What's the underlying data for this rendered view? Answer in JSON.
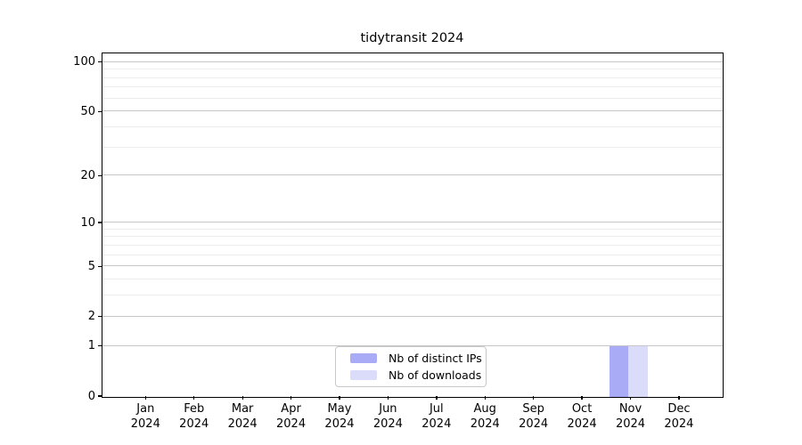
{
  "title": "tidytransit 2024",
  "chart_data": {
    "type": "bar",
    "title": "tidytransit 2024",
    "xlabel": "",
    "ylabel": "",
    "categories": [
      "Jan 2024",
      "Feb 2024",
      "Mar 2024",
      "Apr 2024",
      "May 2024",
      "Jun 2024",
      "Jul 2024",
      "Aug 2024",
      "Sep 2024",
      "Oct 2024",
      "Nov 2024",
      "Dec 2024"
    ],
    "series": [
      {
        "name": "Nb of distinct IPs",
        "color": "#aaabf6",
        "values": [
          0,
          0,
          0,
          0,
          0,
          0,
          0,
          0,
          0,
          0,
          1,
          0
        ]
      },
      {
        "name": "Nb of downloads",
        "color": "#dbdcf9",
        "values": [
          0,
          0,
          0,
          0,
          0,
          0,
          0,
          0,
          0,
          0,
          1,
          0
        ]
      }
    ],
    "y_axis": {
      "scale": "log1p",
      "tick_values": [
        100,
        50,
        20,
        10,
        5,
        2,
        1,
        0
      ],
      "tick_labels": [
        "100",
        "50",
        "20",
        "10",
        "5",
        "2",
        "1",
        "0"
      ],
      "minor_gridline_values": [
        3,
        4,
        6,
        7,
        8,
        9,
        30,
        40,
        60,
        70,
        80,
        90
      ],
      "range": [
        0,
        113
      ]
    },
    "legend": {
      "position": "bottom-center-inside",
      "entries": [
        "Nb of distinct IPs",
        "Nb of downloads"
      ]
    },
    "grid": {
      "axis": "y",
      "which": "major+minor"
    }
  },
  "colors": {
    "major_grid": "#c6c6c6",
    "minor_grid": "#ededed",
    "spine": "#000000",
    "bar_distinct_ips": "#aaabf6",
    "bar_downloads": "#dbdcf9",
    "legend_border": "#c8c8c8"
  }
}
